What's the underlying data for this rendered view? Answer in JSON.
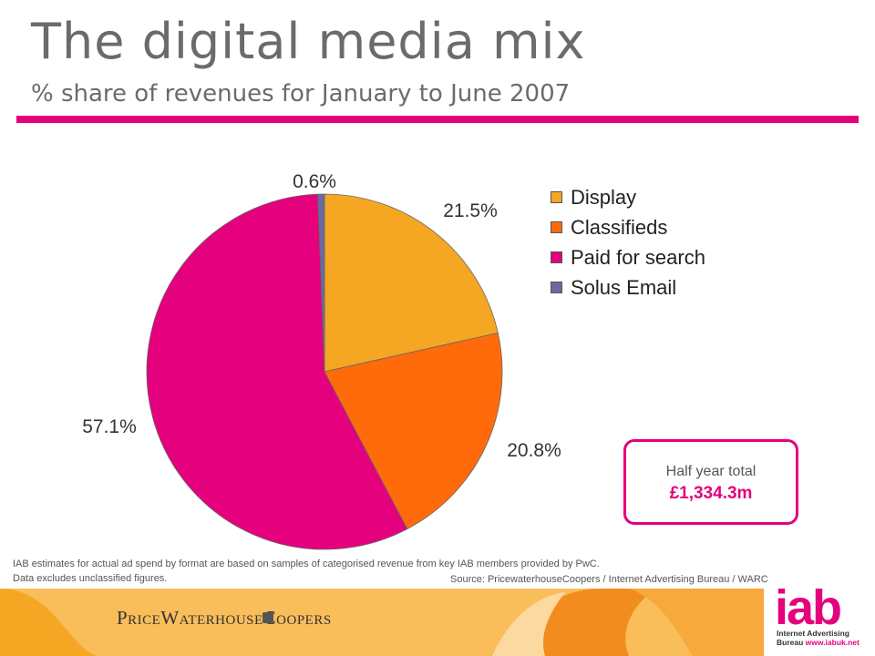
{
  "page": {
    "title": "The digital media mix",
    "subtitle": "% share of revenues for January to June 2007"
  },
  "chart_data": {
    "type": "pie",
    "title": "",
    "categories": [
      "Display",
      "Classifieds",
      "Paid for search",
      "Solus Email"
    ],
    "values": [
      21.5,
      20.8,
      57.1,
      0.6
    ],
    "value_labels": [
      "21.5%",
      "20.8%",
      "57.1%",
      "0.6%"
    ],
    "colors": [
      "#f5a623",
      "#ff6b0a",
      "#e5007e",
      "#6a6aa0"
    ],
    "start_angle_deg": 0,
    "direction": "clockwise",
    "legend_position": "right"
  },
  "total_box": {
    "label": "Half year total",
    "value": "£1,334.3m"
  },
  "footnote": {
    "line1": "IAB estimates for actual ad spend by  format are based on samples of categorised revenue from key IAB members provided by PwC.",
    "line2": "Data excludes unclassified figures."
  },
  "source": "Source: PricewaterhouseCoopers / Internet  Advertising Bureau / WARC",
  "logos": {
    "pwc": "PriceWaterhouseCoopers",
    "iab": "iab",
    "iab_tagline_1": "Internet Advertising",
    "iab_tagline_2": "Bureau",
    "iab_url": "www.iabuk.net"
  },
  "colors": {
    "accent": "#e5007e",
    "footer_orange": "#f5a623"
  }
}
